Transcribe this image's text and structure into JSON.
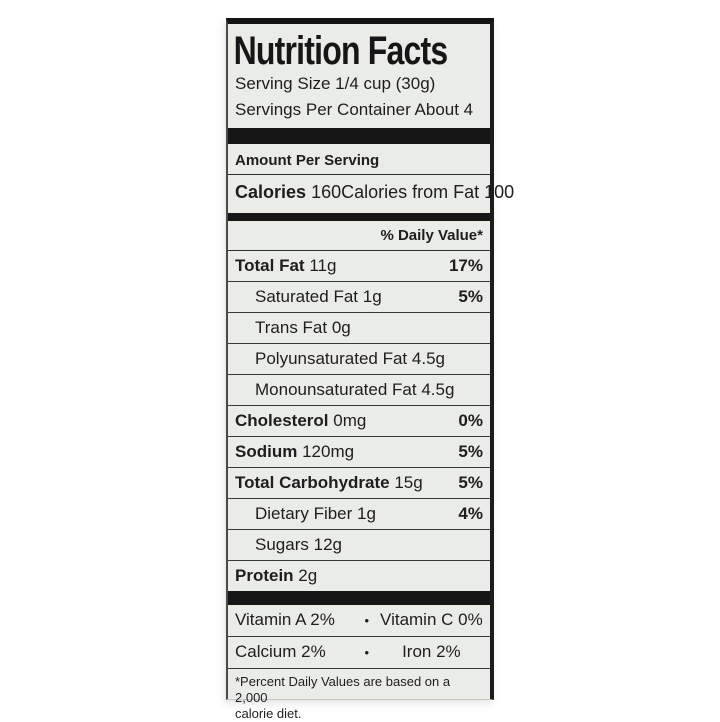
{
  "label": {
    "title": "Nutrition Facts",
    "serving_size": "Serving Size 1/4 cup (30g)",
    "servings_per_container": "Servings Per Container About 4",
    "amount_per_serving": "Amount Per Serving",
    "calories_label": "Calories",
    "calories_value": "160",
    "calories_from_fat": "Calories from Fat 100",
    "daily_value_header": "% Daily Value*",
    "rows": [
      {
        "name": "Total Fat",
        "amount": "11g",
        "dv": "17%"
      },
      {
        "name": "Saturated Fat",
        "amount": "1g",
        "dv": "5%"
      },
      {
        "name": "Trans Fat",
        "amount": "0g",
        "dv": ""
      },
      {
        "name": "Polyunsaturated Fat",
        "amount": "4.5g",
        "dv": ""
      },
      {
        "name": "Monounsaturated Fat",
        "amount": "4.5g",
        "dv": ""
      },
      {
        "name": "Cholesterol",
        "amount": "0mg",
        "dv": "0%"
      },
      {
        "name": "Sodium",
        "amount": "120mg",
        "dv": "5%"
      },
      {
        "name": "Total Carbohydrate",
        "amount": "15g",
        "dv": "5%"
      },
      {
        "name": "Dietary Fiber",
        "amount": "1g",
        "dv": "4%"
      },
      {
        "name": "Sugars",
        "amount": "12g",
        "dv": ""
      },
      {
        "name": "Protein",
        "amount": "2g",
        "dv": ""
      }
    ],
    "bullet": "•",
    "micronutrients": [
      {
        "left": "Vitamin A 2%",
        "right": "Vitamin C 0%"
      },
      {
        "left": "Calcium 2%",
        "right": "Iron 2%"
      }
    ],
    "footnote_line1": "*Percent Daily Values are based on a 2,000",
    "footnote_line2": "calorie diet."
  },
  "colors": {
    "page_bg": "#ffffff",
    "label_bg": "#eaece8",
    "bar": "#161616",
    "text": "#1e1e1e",
    "hairline": "#3a3a3a"
  }
}
